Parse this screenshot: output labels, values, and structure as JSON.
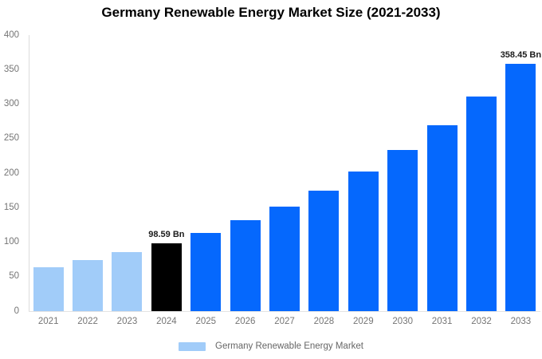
{
  "title": "Germany Renewable Energy Market Size (2021-2033)",
  "legend": {
    "label": "Germany Renewable Energy Market",
    "swatch_color": "#a1ccf9"
  },
  "colors": {
    "light_blue": "#a1ccf9",
    "bright_blue": "#0568fd",
    "black": "#000000",
    "axis_line": "#dcdcdc",
    "tick_text": "#757575",
    "value_label_text": "#1b1b1b"
  },
  "chart_data": {
    "type": "bar",
    "title": "Germany Renewable Energy Market Size (2021-2033)",
    "categories": [
      "2021",
      "2022",
      "2023",
      "2024",
      "2025",
      "2026",
      "2027",
      "2028",
      "2029",
      "2030",
      "2031",
      "2032",
      "2033"
    ],
    "series": [
      {
        "name": "Germany Renewable Energy Market",
        "values": [
          64.1,
          74.0,
          85.4,
          98.59,
          113.8,
          131.4,
          151.6,
          175.0,
          202.0,
          233.2,
          269.2,
          310.8,
          358.45
        ]
      }
    ],
    "bar_colors": [
      "#a1ccf9",
      "#a1ccf9",
      "#a1ccf9",
      "#000000",
      "#0568fd",
      "#0568fd",
      "#0568fd",
      "#0568fd",
      "#0568fd",
      "#0568fd",
      "#0568fd",
      "#0568fd",
      "#0568fd"
    ],
    "data_labels": [
      {
        "index": 3,
        "text": "98.59 Bn"
      },
      {
        "index": 12,
        "text": "358.45 Bn"
      }
    ],
    "xlabel": "",
    "ylabel": "",
    "ylim": [
      0,
      400
    ],
    "yticks": [
      0,
      50,
      100,
      150,
      200,
      250,
      300,
      350,
      400
    ],
    "grid": false,
    "legend_position": "bottom",
    "unit": "Bn"
  }
}
